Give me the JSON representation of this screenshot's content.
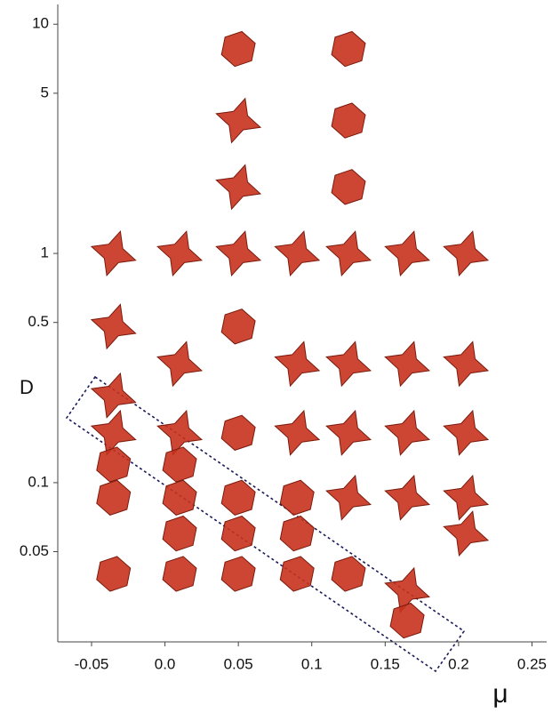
{
  "chart_data": {
    "type": "scatter",
    "x_label": "μ",
    "y_label": "D",
    "x": [
      -0.035,
      -0.035,
      -0.035,
      -0.035,
      -0.035,
      -0.035,
      -0.035,
      0.01,
      0.01,
      0.01,
      0.01,
      0.01,
      0.01,
      0.01,
      0.05,
      0.05,
      0.05,
      0.05,
      0.05,
      0.05,
      0.05,
      0.05,
      0.05,
      0.09,
      0.09,
      0.09,
      0.09,
      0.09,
      0.09,
      0.125,
      0.125,
      0.125,
      0.125,
      0.125,
      0.125,
      0.125,
      0.125,
      0.165,
      0.165,
      0.165,
      0.165,
      0.165,
      0.165,
      0.205,
      0.205,
      0.205,
      0.205,
      0.205
    ],
    "values": [
      1,
      0.48,
      0.24,
      0.165,
      0.12,
      0.086,
      0.04,
      1,
      0.33,
      0.165,
      0.12,
      0.086,
      0.06,
      0.04,
      7.8,
      3.8,
      1.95,
      1,
      0.48,
      0.165,
      0.086,
      0.06,
      0.04,
      1,
      0.33,
      0.165,
      0.086,
      0.06,
      0.04,
      7.8,
      3.8,
      1.95,
      1,
      0.33,
      0.165,
      0.086,
      0.04,
      1,
      0.33,
      0.165,
      0.086,
      0.034,
      0.025,
      1,
      0.33,
      0.165,
      0.086,
      0.06
    ],
    "markers": [
      "star",
      "star",
      "star",
      "star",
      "cube",
      "cube",
      "cube",
      "star",
      "star",
      "star",
      "cube",
      "cube",
      "cube",
      "cube",
      "cube",
      "star",
      "star",
      "star",
      "cube",
      "cube",
      "cube",
      "cube",
      "cube",
      "star",
      "star",
      "star",
      "cube",
      "cube",
      "cube",
      "cube",
      "cube",
      "cube",
      "star",
      "star",
      "star",
      "star",
      "cube",
      "star",
      "star",
      "star",
      "star",
      "star",
      "cube",
      "star",
      "star",
      "star",
      "star",
      "star"
    ],
    "color": "#c8321e",
    "xlim": [
      -0.073,
      0.26
    ],
    "xticks": [
      -0.05,
      {
        "value": 0,
        "label": "0.0"
      },
      0.05,
      0.1,
      0.15,
      0.2,
      0.25
    ],
    "ylim": [
      0.0202,
      12.2
    ],
    "log_y": true,
    "yticks": [
      10,
      5,
      1,
      0.5,
      0.1,
      0.05
    ]
  }
}
